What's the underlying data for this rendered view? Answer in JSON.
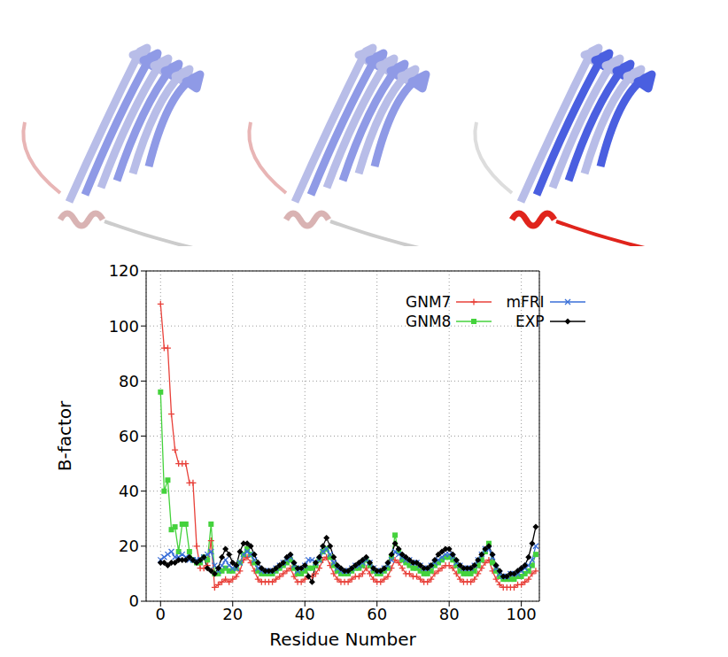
{
  "chart_data": {
    "type": "line",
    "xlabel": "Residue Number",
    "ylabel": "B-factor",
    "x": [
      0,
      1,
      2,
      3,
      4,
      5,
      6,
      7,
      8,
      9,
      10,
      11,
      12,
      13,
      14,
      15,
      16,
      17,
      18,
      19,
      20,
      21,
      22,
      23,
      24,
      25,
      26,
      27,
      28,
      29,
      30,
      31,
      32,
      33,
      34,
      35,
      36,
      37,
      38,
      39,
      40,
      41,
      42,
      43,
      44,
      45,
      46,
      47,
      48,
      49,
      50,
      51,
      52,
      53,
      54,
      55,
      56,
      57,
      58,
      59,
      60,
      61,
      62,
      63,
      64,
      65,
      66,
      67,
      68,
      69,
      70,
      71,
      72,
      73,
      74,
      75,
      76,
      77,
      78,
      79,
      80,
      81,
      82,
      83,
      84,
      85,
      86,
      87,
      88,
      89,
      90,
      91,
      92,
      93,
      94,
      95,
      96,
      97,
      98,
      99,
      100,
      101,
      102,
      103,
      104
    ],
    "xlim": [
      -4,
      105
    ],
    "xticks": [
      0,
      20,
      40,
      60,
      80,
      100
    ],
    "ylim": [
      0,
      120
    ],
    "yticks": [
      0,
      20,
      40,
      60,
      80,
      100,
      120
    ],
    "grid": true,
    "legend": "upper right",
    "series": [
      {
        "name": "GNM7",
        "color": "#e8413a",
        "marker": "plus",
        "values": [
          108,
          92,
          92,
          68,
          55,
          50,
          50,
          50,
          43,
          43,
          20,
          12,
          12,
          13,
          22,
          5,
          6,
          7,
          8,
          7,
          8,
          9,
          11,
          15,
          16,
          14,
          11,
          8,
          7,
          7,
          7,
          7,
          8,
          9,
          10,
          11,
          12,
          9,
          7,
          7,
          8,
          9,
          9,
          10,
          12,
          15,
          16,
          13,
          10,
          8,
          7,
          7,
          7,
          8,
          9,
          9,
          10,
          12,
          10,
          8,
          7,
          7,
          8,
          9,
          12,
          15,
          14,
          12,
          10,
          10,
          9,
          9,
          8,
          7,
          7,
          8,
          10,
          11,
          12,
          13,
          13,
          12,
          10,
          8,
          7,
          7,
          7,
          8,
          10,
          12,
          14,
          15,
          11,
          8,
          6,
          5,
          5,
          5,
          5,
          6,
          6,
          7,
          8,
          10,
          11
        ]
      },
      {
        "name": "GNM8",
        "color": "#44d23c",
        "marker": "square",
        "values": [
          76,
          40,
          44,
          26,
          27,
          18,
          28,
          28,
          18,
          15,
          14,
          14,
          16,
          15,
          28,
          10,
          10,
          11,
          12,
          11,
          11,
          12,
          14,
          17,
          19,
          17,
          14,
          11,
          10,
          10,
          10,
          10,
          11,
          12,
          13,
          14,
          15,
          12,
          10,
          10,
          11,
          12,
          12,
          13,
          15,
          18,
          19,
          16,
          13,
          11,
          10,
          10,
          10,
          11,
          12,
          12,
          13,
          15,
          13,
          11,
          10,
          10,
          11,
          12,
          16,
          24,
          18,
          15,
          14,
          13,
          12,
          12,
          11,
          10,
          10,
          11,
          13,
          14,
          15,
          16,
          16,
          15,
          13,
          11,
          10,
          10,
          10,
          11,
          13,
          15,
          18,
          21,
          14,
          11,
          9,
          8,
          8,
          8,
          8,
          9,
          9,
          10,
          11,
          13,
          17
        ]
      },
      {
        "name": "mFRI",
        "color": "#3a6fd8",
        "marker": "cross",
        "values": [
          15,
          16,
          17,
          18,
          16,
          16,
          17,
          16,
          15,
          15,
          15,
          15,
          16,
          17,
          18,
          13,
          11,
          13,
          15,
          13,
          12,
          12,
          14,
          17,
          18,
          17,
          15,
          12,
          11,
          11,
          11,
          11,
          12,
          13,
          14,
          15,
          16,
          13,
          11,
          12,
          13,
          15,
          15,
          14,
          15,
          18,
          19,
          17,
          14,
          12,
          11,
          11,
          11,
          12,
          13,
          13,
          14,
          15,
          14,
          12,
          11,
          11,
          12,
          13,
          15,
          18,
          17,
          16,
          15,
          15,
          14,
          14,
          13,
          12,
          12,
          13,
          14,
          15,
          16,
          17,
          17,
          16,
          14,
          13,
          12,
          12,
          12,
          13,
          15,
          17,
          19,
          19,
          16,
          12,
          10,
          9,
          9,
          10,
          10,
          10,
          11,
          12,
          13,
          15,
          20
        ]
      },
      {
        "name": "EXP",
        "color": "#000000",
        "marker": "diamond",
        "values": [
          14,
          14,
          13,
          14,
          14,
          15,
          15,
          15,
          16,
          15,
          14,
          15,
          16,
          12,
          11,
          10,
          12,
          16,
          19,
          17,
          14,
          13,
          18,
          21,
          21,
          20,
          17,
          14,
          12,
          11,
          11,
          11,
          12,
          13,
          14,
          16,
          17,
          14,
          12,
          12,
          13,
          9,
          7,
          14,
          16,
          20,
          23,
          20,
          16,
          13,
          12,
          11,
          11,
          12,
          13,
          14,
          15,
          16,
          14,
          12,
          11,
          11,
          12,
          14,
          17,
          21,
          19,
          17,
          16,
          15,
          14,
          14,
          13,
          12,
          12,
          13,
          15,
          17,
          18,
          19,
          19,
          17,
          15,
          13,
          12,
          12,
          12,
          13,
          15,
          17,
          19,
          20,
          17,
          13,
          11,
          9,
          9,
          10,
          10,
          11,
          12,
          13,
          16,
          21,
          27
        ]
      }
    ]
  }
}
